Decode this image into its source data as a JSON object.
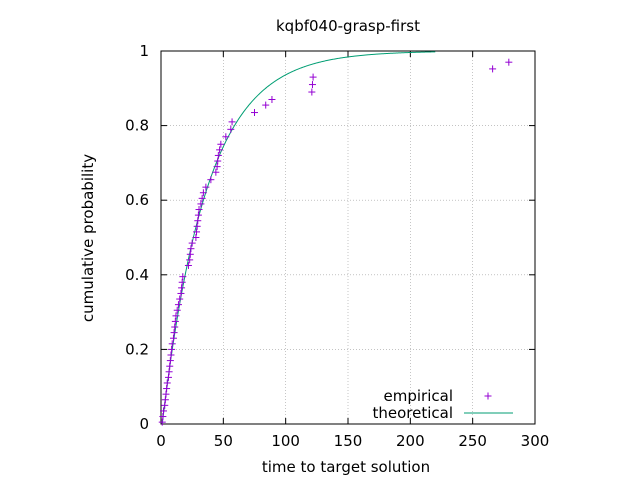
{
  "chart_data": {
    "type": "scatter",
    "title": "kqbf040-grasp-first",
    "xlabel": "time to target solution",
    "ylabel": "cumulative probability",
    "xlim": [
      0,
      300
    ],
    "ylim": [
      0,
      1
    ],
    "x_ticks": [
      "0",
      "50",
      "100",
      "150",
      "200",
      "250",
      "300"
    ],
    "y_ticks": [
      "0",
      "0.2",
      "0.4",
      "0.6",
      "0.8",
      "1"
    ],
    "grid": true,
    "legend_position": "bottom-right",
    "colors": {
      "empirical": "#9400d3",
      "theoretical": "#009e73"
    },
    "series": [
      {
        "name": "empirical",
        "kind": "points",
        "points": [
          [
            1,
            0.005
          ],
          [
            1.5,
            0.02
          ],
          [
            2,
            0.035
          ],
          [
            3,
            0.05
          ],
          [
            3.5,
            0.065
          ],
          [
            4,
            0.08
          ],
          [
            4.5,
            0.095
          ],
          [
            5,
            0.11
          ],
          [
            6,
            0.125
          ],
          [
            6.5,
            0.14
          ],
          [
            7,
            0.155
          ],
          [
            7.5,
            0.17
          ],
          [
            8,
            0.185
          ],
          [
            8.5,
            0.2
          ],
          [
            9,
            0.215
          ],
          [
            10,
            0.23
          ],
          [
            10.5,
            0.245
          ],
          [
            11,
            0.26
          ],
          [
            11.5,
            0.275
          ],
          [
            12,
            0.29
          ],
          [
            13,
            0.305
          ],
          [
            14,
            0.32
          ],
          [
            15,
            0.335
          ],
          [
            16,
            0.35
          ],
          [
            16.5,
            0.365
          ],
          [
            17,
            0.38
          ],
          [
            17.5,
            0.395
          ],
          [
            22,
            0.425
          ],
          [
            23,
            0.44
          ],
          [
            23.5,
            0.455
          ],
          [
            24,
            0.47
          ],
          [
            25,
            0.485
          ],
          [
            28,
            0.5
          ],
          [
            28.5,
            0.515
          ],
          [
            29,
            0.53
          ],
          [
            29.5,
            0.545
          ],
          [
            30,
            0.56
          ],
          [
            30.5,
            0.575
          ],
          [
            32,
            0.59
          ],
          [
            33,
            0.605
          ],
          [
            34,
            0.62
          ],
          [
            36,
            0.635
          ],
          [
            40,
            0.655
          ],
          [
            44,
            0.675
          ],
          [
            45,
            0.69
          ],
          [
            45.5,
            0.705
          ],
          [
            46,
            0.72
          ],
          [
            47,
            0.735
          ],
          [
            48,
            0.75
          ],
          [
            52,
            0.77
          ],
          [
            56,
            0.79
          ],
          [
            57,
            0.81
          ],
          [
            75,
            0.835
          ],
          [
            84,
            0.855
          ],
          [
            89,
            0.87
          ],
          [
            121,
            0.89
          ],
          [
            121.5,
            0.91
          ],
          [
            122,
            0.93
          ],
          [
            266,
            0.952
          ],
          [
            279,
            0.97
          ]
        ]
      },
      {
        "name": "theoretical",
        "kind": "line",
        "model": "1 - exp(-(t - 1) / 36)",
        "x_range": [
          1,
          220
        ]
      }
    ]
  }
}
